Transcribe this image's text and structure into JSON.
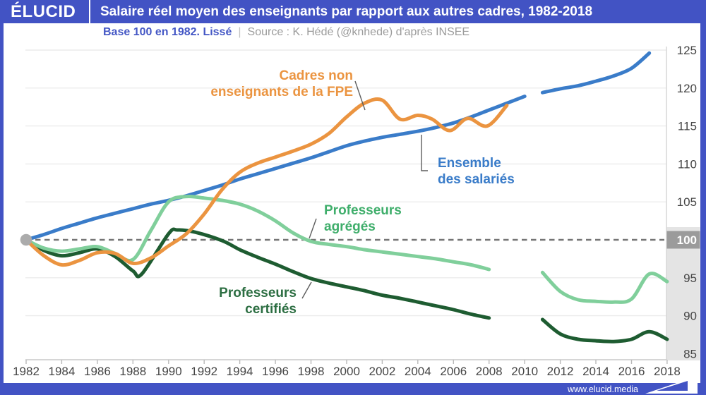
{
  "header": {
    "logo_text": "ÉLUCID",
    "title": "Salaire réel moyen des enseignants par rapport aux autres cadres, 1982-2018"
  },
  "subtitle": {
    "note": "Base 100 en 1982. Lissé",
    "divider": "|",
    "source": "Source : K. Hédé (@knhede) d'après INSEE"
  },
  "footer": {
    "website": "www.elucid.media"
  },
  "colors": {
    "frame_blue": "#4253c4",
    "axis_text": "#454545",
    "grid_line": "#ececec",
    "axis_line": "#c9c9c9",
    "tick_line": "#b9b9b9",
    "y_axis_line": "#d4d4d4",
    "baseline_dash": "#757575",
    "start_marker": "#ababab",
    "band_background": "#e4e4e4",
    "baseline_tick_box": "#9b9b9b",
    "baseline_tick_text": "#ffffff",
    "leader_line": "#5d5d5d",
    "subtitle_note": "#4457c5",
    "subtitle_source": "#9b9b9b"
  },
  "chart_data": {
    "type": "line",
    "title": "Salaire réel moyen des enseignants par rapport aux autres cadres, 1982-2018",
    "baseline_note": "Base 100 en 1982. Lissé",
    "x_axis": {
      "min": 1982,
      "max": 2018,
      "ticks": [
        1982,
        1984,
        1986,
        1988,
        1990,
        1992,
        1994,
        1996,
        1998,
        2000,
        2002,
        2004,
        2006,
        2008,
        2010,
        2012,
        2014,
        2016,
        2018
      ]
    },
    "y_axis": {
      "min": 84,
      "max": 126,
      "ticks": [
        85,
        90,
        95,
        100,
        105,
        110,
        115,
        120,
        125
      ],
      "highlight": 100
    },
    "baseline_value": 100,
    "start_marker": {
      "year": 1982,
      "value": 100
    },
    "grid": true,
    "legend": "inline-labels",
    "series": [
      {
        "id": "cadres-non-enseignants-fpe",
        "name": "Cadres non enseignants de la FPE",
        "label_lines": [
          "Cadres non",
          "enseignants de la FPE"
        ],
        "color": "#eb9440",
        "segments": [
          [
            [
              1982,
              100
            ],
            [
              1983,
              97.9
            ],
            [
              1984,
              96.7
            ],
            [
              1985,
              97.3
            ],
            [
              1986,
              98.3
            ],
            [
              1987,
              98.2
            ],
            [
              1988,
              96.9
            ],
            [
              1989,
              97.6
            ],
            [
              1990,
              99.2
            ],
            [
              1991,
              100.8
            ],
            [
              1992,
              103.4
            ],
            [
              1993,
              106.6
            ],
            [
              1994,
              108.9
            ],
            [
              1995,
              110.1
            ],
            [
              1996,
              110.9
            ],
            [
              1997,
              111.7
            ],
            [
              1998,
              112.6
            ],
            [
              1999,
              114.0
            ],
            [
              2000,
              116.2
            ],
            [
              2001,
              118.0
            ],
            [
              2002,
              118.4
            ],
            [
              2003,
              115.9
            ],
            [
              2004,
              116.4
            ],
            [
              2004.8,
              115.9
            ],
            [
              2005.8,
              114.4
            ],
            [
              2006.8,
              116.0
            ],
            [
              2007.9,
              115.0
            ],
            [
              2009,
              117.7
            ]
          ]
        ]
      },
      {
        "id": "ensemble-des-salaries",
        "name": "Ensemble des salariés",
        "label_lines": [
          "Ensemble",
          "des salariés"
        ],
        "color": "#3a7cc9",
        "segments": [
          [
            [
              1982,
              100
            ],
            [
              1983,
              100.7
            ],
            [
              1984,
              101.5
            ],
            [
              1985,
              102.2
            ],
            [
              1986,
              102.9
            ],
            [
              1987,
              103.5
            ],
            [
              1988,
              104.1
            ],
            [
              1989,
              104.7
            ],
            [
              1990,
              105.2
            ],
            [
              1991,
              105.8
            ],
            [
              1992,
              106.5
            ],
            [
              1993,
              107.2
            ],
            [
              1994,
              108.0
            ],
            [
              1995,
              108.7
            ],
            [
              1996,
              109.4
            ],
            [
              1997,
              110.1
            ],
            [
              1998,
              110.8
            ],
            [
              1999,
              111.6
            ],
            [
              2000,
              112.4
            ],
            [
              2001,
              113.0
            ],
            [
              2002,
              113.5
            ],
            [
              2003,
              113.9
            ],
            [
              2004,
              114.3
            ],
            [
              2005,
              114.8
            ],
            [
              2006,
              115.4
            ],
            [
              2007,
              116.2
            ],
            [
              2008,
              117.1
            ],
            [
              2009,
              118.0
            ],
            [
              2010,
              118.9
            ]
          ],
          [
            [
              2011,
              119.4
            ],
            [
              2012,
              119.9
            ],
            [
              2013,
              120.3
            ],
            [
              2014,
              120.9
            ],
            [
              2015,
              121.6
            ],
            [
              2016,
              122.6
            ],
            [
              2017,
              124.6
            ]
          ]
        ]
      },
      {
        "id": "professeurs-agreges",
        "name": "Professeurs agrégés",
        "label_lines": [
          "Professeurs",
          "agrégés"
        ],
        "color": "#80cf9b",
        "label_color": "#3fae6b",
        "segments": [
          [
            [
              1982,
              100
            ],
            [
              1983,
              98.9
            ],
            [
              1984,
              98.5
            ],
            [
              1985,
              98.8
            ],
            [
              1986,
              99.1
            ],
            [
              1987,
              98.2
            ],
            [
              1988,
              97.4
            ],
            [
              1989,
              101.2
            ],
            [
              1990,
              105.0
            ],
            [
              1991,
              105.7
            ],
            [
              1992,
              105.5
            ],
            [
              1993,
              105.2
            ],
            [
              1994,
              104.7
            ],
            [
              1995,
              103.8
            ],
            [
              1996,
              102.5
            ],
            [
              1997,
              100.9
            ],
            [
              1998,
              99.8
            ],
            [
              1999,
              99.4
            ],
            [
              2000,
              99.1
            ],
            [
              2001,
              98.7
            ],
            [
              2002,
              98.4
            ],
            [
              2003,
              98.1
            ],
            [
              2004,
              97.8
            ],
            [
              2005,
              97.5
            ],
            [
              2006,
              97.1
            ],
            [
              2007,
              96.7
            ],
            [
              2008,
              96.1
            ]
          ],
          [
            [
              2011,
              95.7
            ],
            [
              2012,
              93.2
            ],
            [
              2013,
              92.1
            ],
            [
              2014,
              91.9
            ],
            [
              2015,
              91.8
            ],
            [
              2016,
              92.2
            ],
            [
              2017,
              95.5
            ],
            [
              2018,
              94.5
            ]
          ]
        ]
      },
      {
        "id": "professeurs-certifies",
        "name": "Professeurs certifiés",
        "label_lines": [
          "Professeurs",
          "certifiés"
        ],
        "color": "#1e5c31",
        "label_color": "#2c6e42",
        "segments": [
          [
            [
              1982,
              100
            ],
            [
              1983,
              98.6
            ],
            [
              1984,
              97.9
            ],
            [
              1985,
              98.3
            ],
            [
              1986,
              98.8
            ],
            [
              1987,
              97.8
            ],
            [
              1988,
              95.9
            ],
            [
              1988.5,
              95.5
            ],
            [
              1990,
              100.8
            ],
            [
              1990.5,
              101.3
            ],
            [
              1991.5,
              101.0
            ],
            [
              1993,
              99.9
            ],
            [
              1994,
              98.7
            ],
            [
              1995,
              97.7
            ],
            [
              1996,
              96.8
            ],
            [
              1997,
              95.8
            ],
            [
              1998,
              94.9
            ],
            [
              1999,
              94.3
            ],
            [
              2000,
              93.8
            ],
            [
              2001,
              93.3
            ],
            [
              2002,
              92.7
            ],
            [
              2003,
              92.3
            ],
            [
              2004,
              91.8
            ],
            [
              2005,
              91.3
            ],
            [
              2006,
              90.8
            ],
            [
              2007,
              90.2
            ],
            [
              2008,
              89.7
            ]
          ],
          [
            [
              2011,
              89.5
            ],
            [
              2012,
              87.6
            ],
            [
              2013,
              86.9
            ],
            [
              2014,
              86.7
            ],
            [
              2015,
              86.6
            ],
            [
              2016,
              86.9
            ],
            [
              2017,
              87.9
            ],
            [
              2018,
              86.9
            ]
          ]
        ]
      }
    ]
  }
}
